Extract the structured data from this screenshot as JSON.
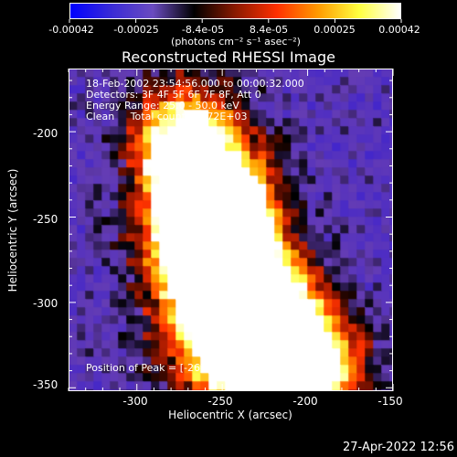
{
  "colorbar": {
    "ticks": [
      "-0.00042",
      "-0.00025",
      "-8.4e-05",
      "8.4e-05",
      "0.00025",
      "0.00042"
    ],
    "units": "(photons cm⁻² s⁻¹ asec⁻²)",
    "colors": [
      "#0000ff",
      "#3a2bd6",
      "#6a4bc0",
      "#000000",
      "#8a1a00",
      "#ff3000",
      "#ff9a00",
      "#ffff40",
      "#ffffff"
    ]
  },
  "annotation": {
    "line1": "18-Feb-2002 23:54:56.000 to 00:00:32.000",
    "line2": "Detectors: 3F 4F 5F 6F 7F 8F, Att 0",
    "line3": "Energy Range: 25.0 - 50.0 keV",
    "line4": "Clean     Total counts: 4.72E+03",
    "peak": "Position of Peak = [-267,-254]"
  },
  "footer": {
    "timestamp": "27-Apr-2022 12:56"
  },
  "chart_data": {
    "type": "heatmap",
    "title": "Reconstructed RHESSI Image",
    "xlabel": "Heliocentric X (arcsec)",
    "ylabel": "Heliocentric Y (arcsec)",
    "xlim": [
      -340,
      -150
    ],
    "ylim": [
      -352,
      -163
    ],
    "xticks": [
      "-300",
      "-250",
      "-200",
      "-150"
    ],
    "yticks": [
      "-200",
      "-250",
      "-300",
      "-350"
    ],
    "peak": [
      -267,
      -254
    ],
    "colorbar_range": [
      -0.00042,
      0.00042
    ],
    "colormap": "blue-purple-black-red-yellow-white"
  }
}
